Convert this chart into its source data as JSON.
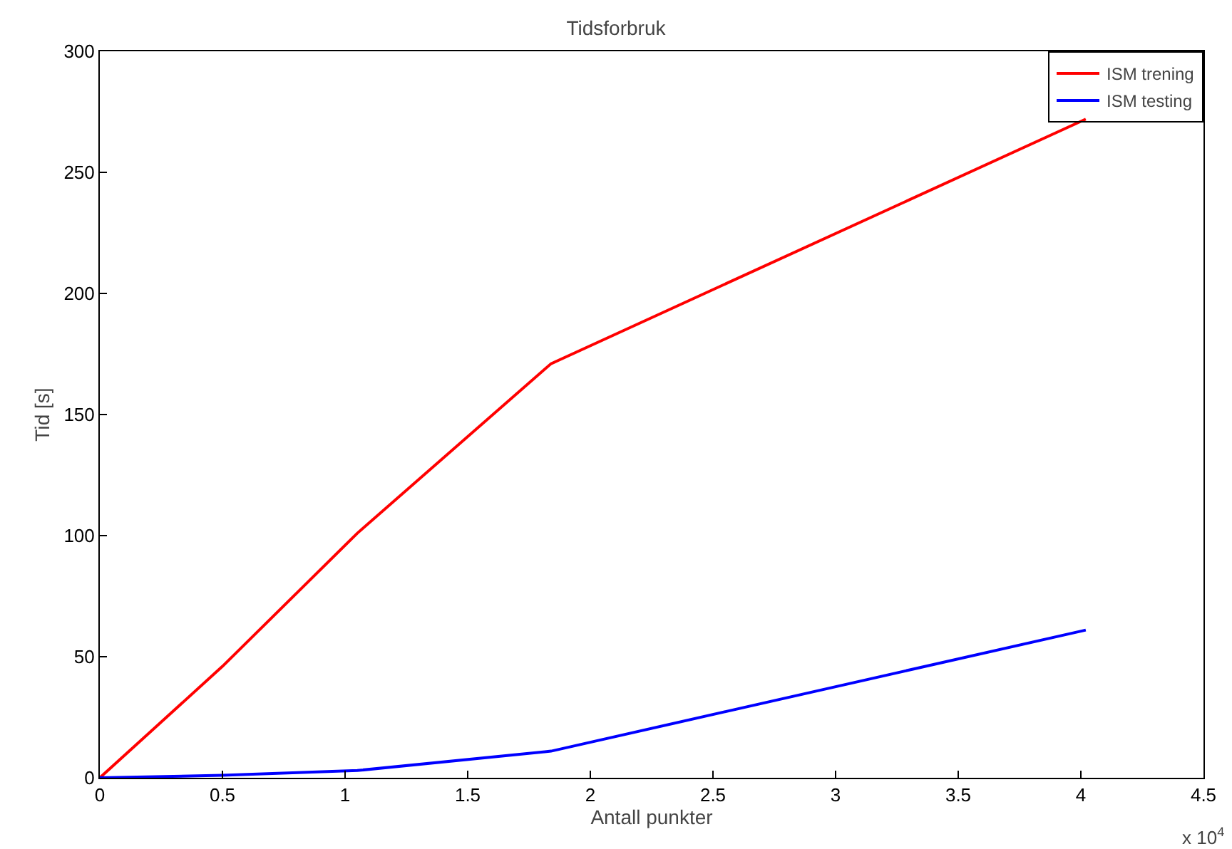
{
  "chart_data": {
    "type": "line",
    "title": "Tidsforbruk",
    "xlabel": "Antall punkter",
    "ylabel": "Tid [s]",
    "series": [
      {
        "name": "ISM trening",
        "color": "#ff0000",
        "x": [
          0,
          0.5,
          1.05,
          1.84,
          4.02
        ],
        "values": [
          0,
          46,
          101,
          171,
          272
        ]
      },
      {
        "name": "ISM testing",
        "color": "#0000ff",
        "x": [
          0,
          0.5,
          1.05,
          1.84,
          4.02
        ],
        "values": [
          0,
          1,
          3,
          11,
          61
        ]
      }
    ],
    "xlim": [
      0,
      4.5
    ],
    "ylim": [
      0,
      300
    ],
    "xticks": [
      0,
      0.5,
      1,
      1.5,
      2,
      2.5,
      3,
      3.5,
      4,
      4.5
    ],
    "yticks": [
      0,
      50,
      100,
      150,
      200,
      250,
      300
    ],
    "annotations": [
      "x 10$^{4}$"
    ],
    "legend": "top right",
    "grid": false,
    "marker": "none",
    "line_style": "solid"
  }
}
